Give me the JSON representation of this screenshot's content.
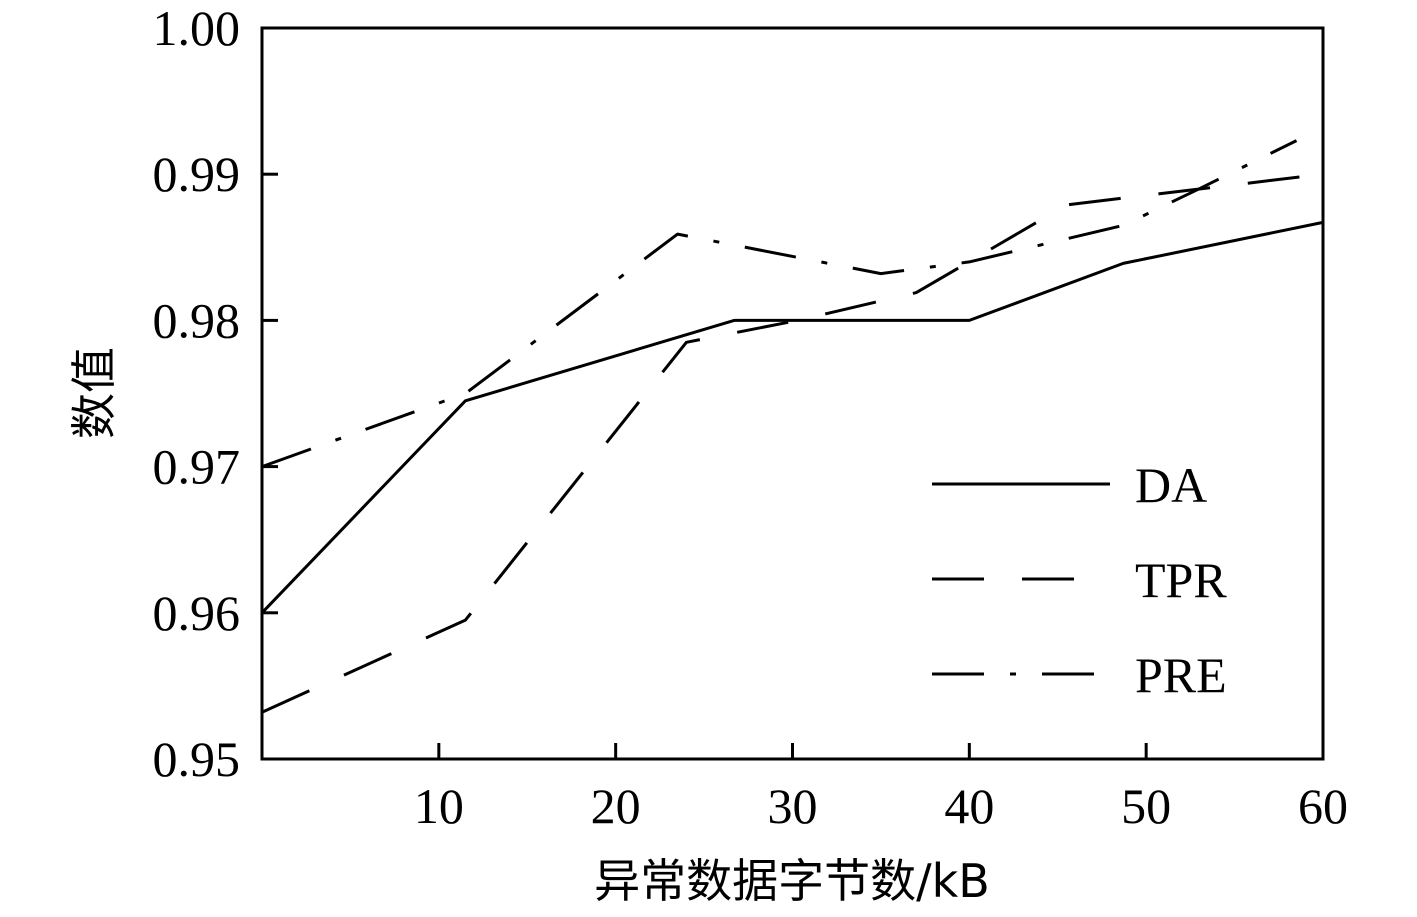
{
  "chart_data": {
    "type": "line",
    "title": "",
    "xlabel": "异常数据字节数/kB",
    "ylabel": "数值",
    "xlim": [
      0,
      60
    ],
    "ylim": [
      0.95,
      1.0
    ],
    "x_ticks": [
      10,
      20,
      30,
      40,
      50,
      60
    ],
    "x_tick_labels": [
      "10",
      "20",
      "30",
      "40",
      "50",
      "60"
    ],
    "y_ticks": [
      0.95,
      0.96,
      0.97,
      0.98,
      0.99,
      1.0
    ],
    "y_tick_labels": [
      "0.95",
      "0.96",
      "0.97",
      "0.98",
      "0.99",
      "1.00"
    ],
    "grid": false,
    "legend_position": "bottom-right",
    "series": [
      {
        "name": "DA",
        "style": "solid",
        "color": "#000000",
        "points": [
          [
            0,
            0.96
          ],
          [
            11.5,
            0.9745
          ],
          [
            26.7,
            0.98
          ],
          [
            40,
            0.98
          ],
          [
            48.7,
            0.9839
          ],
          [
            60,
            0.9867
          ]
        ]
      },
      {
        "name": "TPR",
        "style": "dashed",
        "color": "#000000",
        "points": [
          [
            0,
            0.9532
          ],
          [
            11.5,
            0.9595
          ],
          [
            24.0,
            0.9785
          ],
          [
            30.3,
            0.98
          ],
          [
            37.0,
            0.9819
          ],
          [
            45.5,
            0.9879
          ],
          [
            60,
            0.99
          ]
        ]
      },
      {
        "name": "PRE",
        "style": "dashdot",
        "color": "#000000",
        "points": [
          [
            0,
            0.97
          ],
          [
            11.5,
            0.975
          ],
          [
            23.5,
            0.9859
          ],
          [
            35.0,
            0.9832
          ],
          [
            40.0,
            0.984
          ],
          [
            48.7,
            0.9865
          ],
          [
            53.0,
            0.989
          ],
          [
            58.5,
            0.9923
          ]
        ]
      }
    ]
  }
}
